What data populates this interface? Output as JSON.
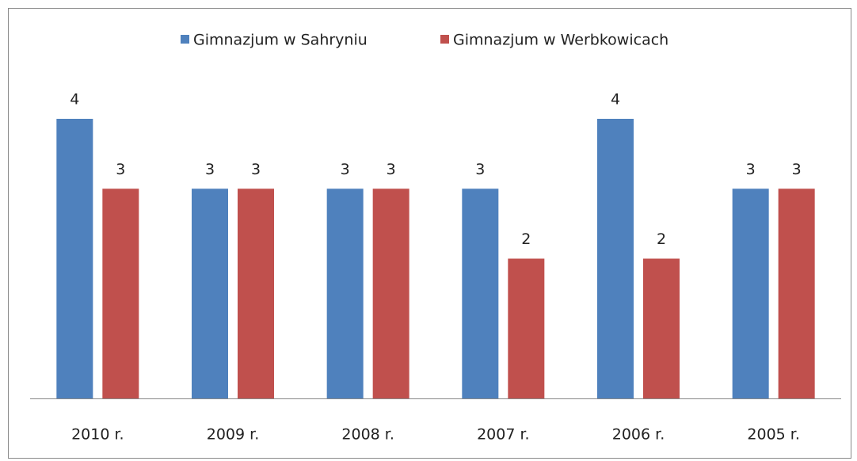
{
  "chart_data": {
    "type": "bar",
    "categories": [
      "2010 r.",
      "2009 r.",
      "2008 r.",
      "2007 r.",
      "2006 r.",
      "2005 r."
    ],
    "series": [
      {
        "name": "Gimnazjum w Sahryniu",
        "color": "#4f81bd",
        "values": [
          4,
          3,
          3,
          3,
          4,
          3
        ]
      },
      {
        "name": "Gimnazjum w Werbkowicach",
        "color": "#c0504d",
        "values": [
          3,
          3,
          3,
          2,
          2,
          3
        ]
      }
    ],
    "legend": "top",
    "data_labels": true
  }
}
